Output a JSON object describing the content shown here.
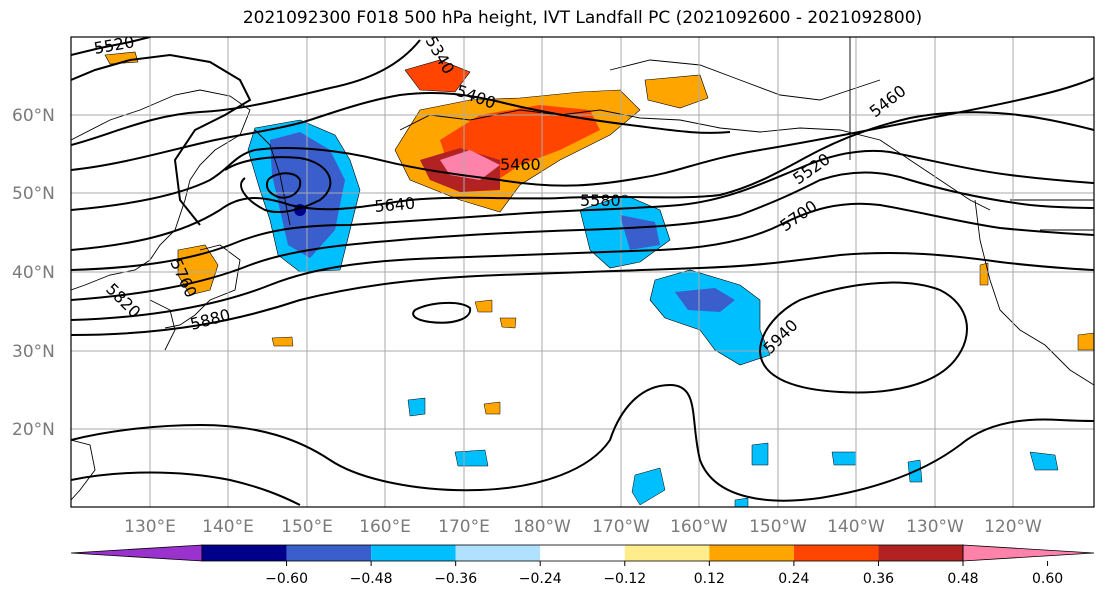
{
  "title": "2021092300 F018 500 hPa height, IVT Landfall PC (2021092600 - 2021092800)",
  "lat_labels": [
    "60°N",
    "50°N",
    "40°N",
    "30°N",
    "20°N"
  ],
  "lon_labels": [
    "130°E",
    "140°E",
    "150°E",
    "160°E",
    "170°E",
    "180°W",
    "170°W",
    "160°W",
    "150°W",
    "140°W",
    "130°W",
    "120°W"
  ],
  "contour_labels": [
    "5520",
    "5340",
    "5400",
    "5460",
    "5580",
    "5640",
    "5520",
    "5460",
    "5700",
    "5820",
    "5760",
    "5880",
    "5940"
  ],
  "colorbar": {
    "ticks": [
      "−0.60",
      "−0.48",
      "−0.36",
      "−0.24",
      "−0.12",
      "0.12",
      "0.24",
      "0.36",
      "0.48",
      "0.60"
    ],
    "colors": [
      "#9a32cd",
      "#00008b",
      "#3a5fcd",
      "#00bfff",
      "#b0e2ff",
      "#ffffff",
      "#ffec8b",
      "#ffa500",
      "#ff4500",
      "#b22222",
      "#ff82ab"
    ]
  }
}
